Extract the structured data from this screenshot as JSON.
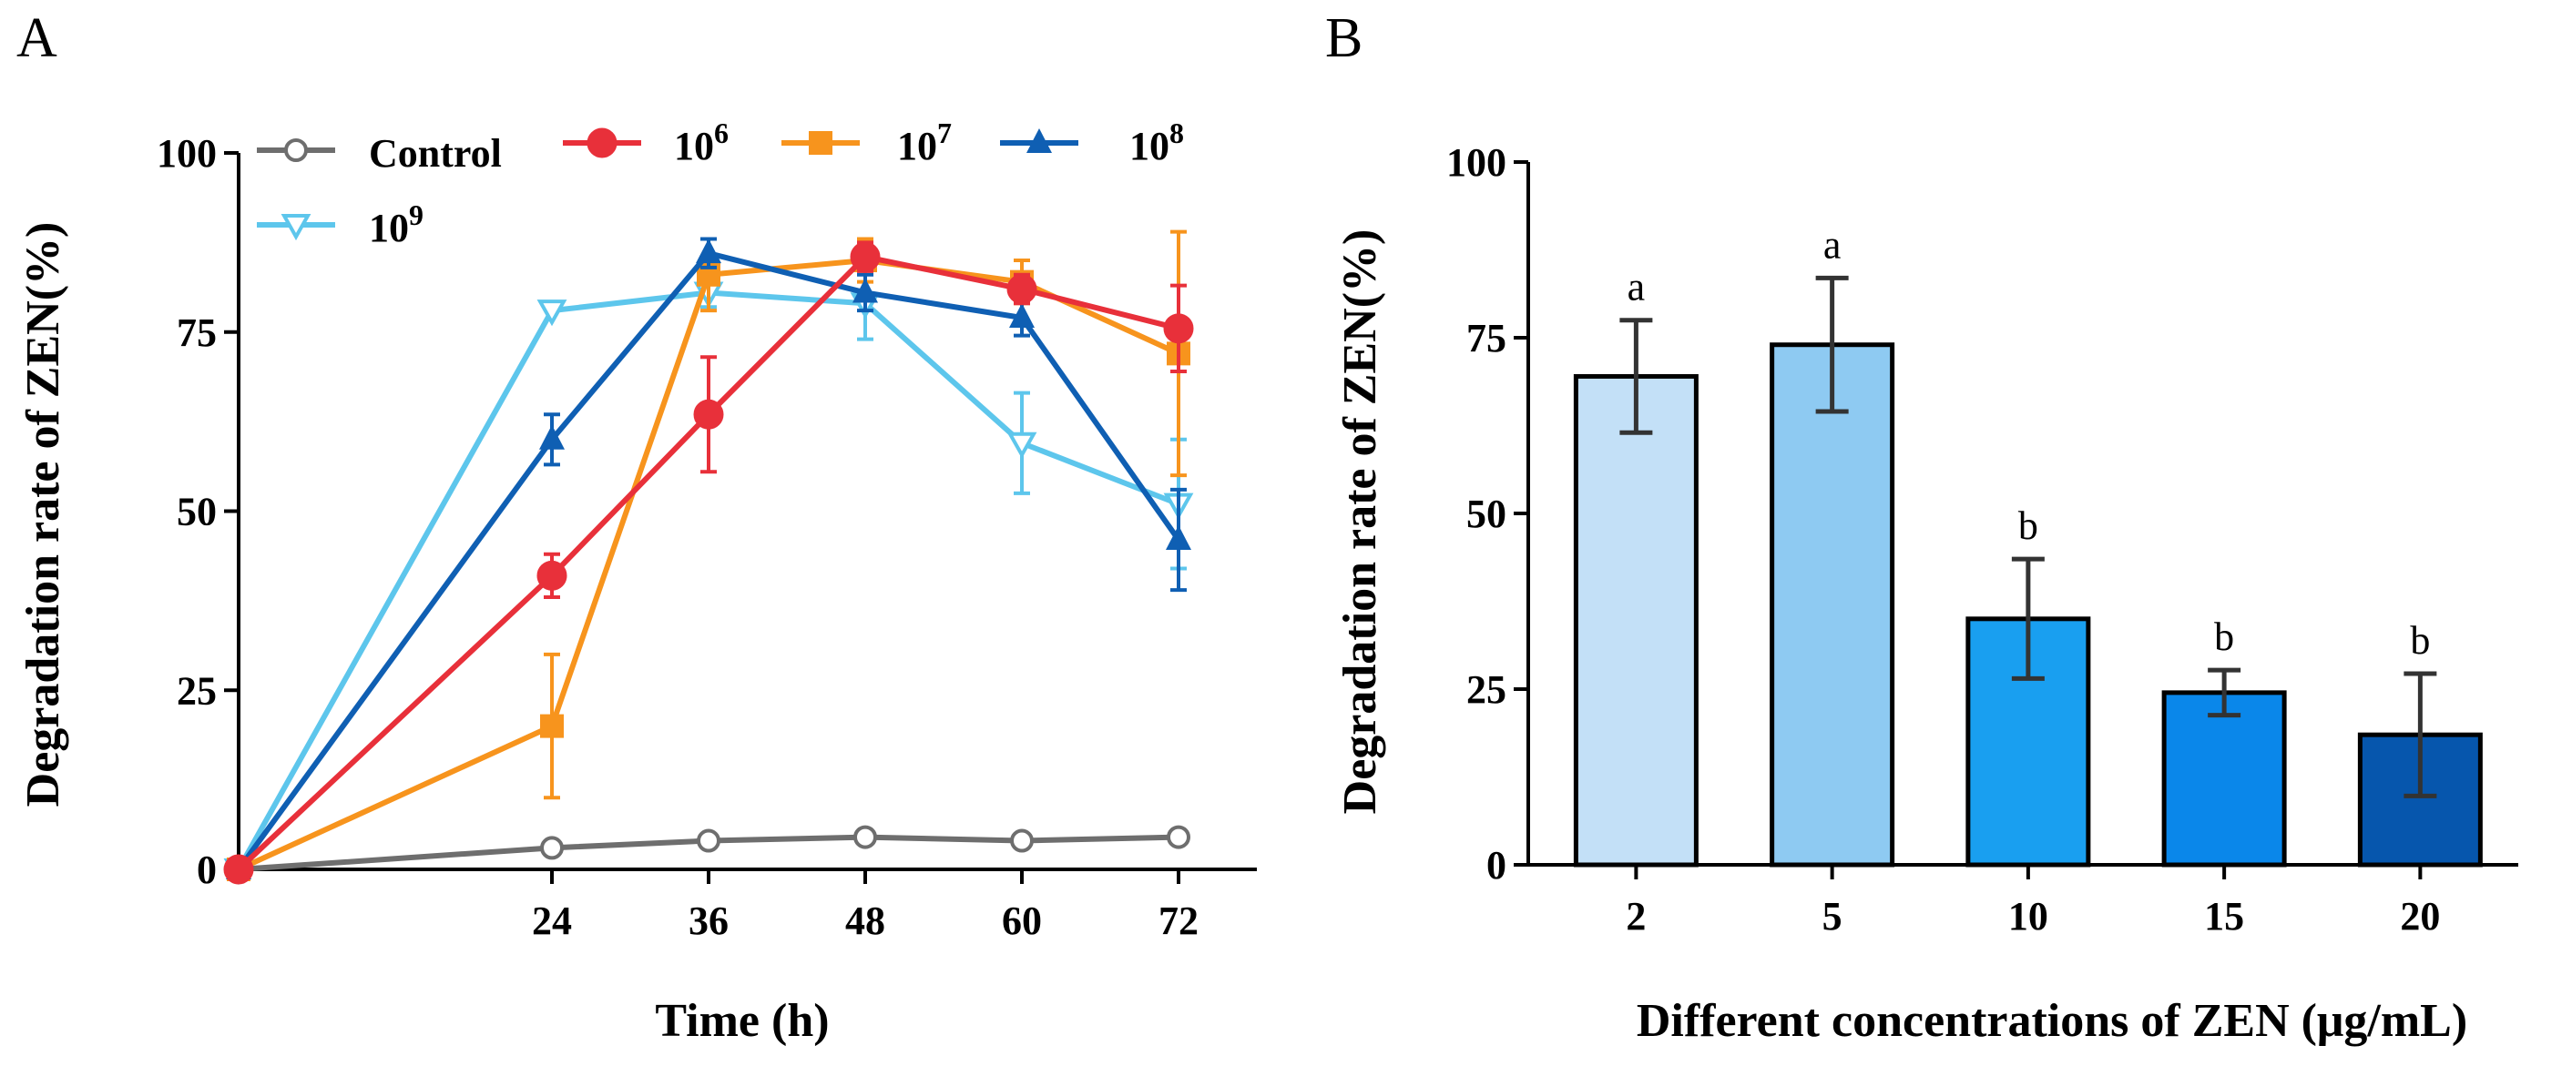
{
  "chart_data": [
    {
      "type": "line",
      "panel_label": "A",
      "xlabel": "Time (h)",
      "ylabel": "Degradation rate of ZEN(%)",
      "xlim": [
        0,
        78
      ],
      "ylim": [
        0,
        100
      ],
      "xticks": [
        24,
        36,
        48,
        60,
        72
      ],
      "yticks": [
        0,
        25,
        50,
        75,
        100
      ],
      "x": [
        0,
        24,
        36,
        48,
        60,
        72
      ],
      "legend_position": "top",
      "series": [
        {
          "name": "Control",
          "base": "Control",
          "sup": "",
          "marker": "circle-open",
          "color": "#6e6e6e",
          "values": [
            0,
            3,
            4,
            4.5,
            4,
            4.5
          ],
          "errors": [
            0,
            0.5,
            0.5,
            0.5,
            0.5,
            0.5
          ]
        },
        {
          "name": "10^6",
          "base": "10",
          "sup": "6",
          "marker": "circle",
          "color": "#e8303a",
          "values": [
            0,
            41,
            63.5,
            85.5,
            81,
            75.5
          ],
          "errors": [
            0,
            3,
            8,
            2,
            2,
            6
          ]
        },
        {
          "name": "10^7",
          "base": "10",
          "sup": "7",
          "marker": "square",
          "color": "#f7941d",
          "values": [
            0,
            20,
            83,
            85,
            82,
            72
          ],
          "errors": [
            0,
            10,
            5,
            3,
            3,
            17
          ]
        },
        {
          "name": "10^8",
          "base": "10",
          "sup": "8",
          "marker": "triangle",
          "color": "#0f5fb3",
          "values": [
            0,
            60,
            86,
            80.5,
            77,
            46
          ],
          "errors": [
            0,
            3.5,
            2,
            2.5,
            2.5,
            7
          ]
        },
        {
          "name": "10^9",
          "base": "10",
          "sup": "9",
          "marker": "triangle-down-open",
          "color": "#5dc6ec",
          "values": [
            0,
            78,
            80.5,
            79,
            59.5,
            51
          ],
          "errors": [
            0,
            0.5,
            2,
            5,
            7,
            9
          ]
        }
      ]
    },
    {
      "type": "bar",
      "panel_label": "B",
      "xlabel": "Different concentrations of ZEN (μg/mL)",
      "ylabel": "Degradation rate of ZEN(%)",
      "ylim": [
        0,
        100
      ],
      "yticks": [
        0,
        25,
        50,
        75,
        100
      ],
      "categories": [
        "2",
        "5",
        "10",
        "15",
        "20"
      ],
      "values": [
        69.5,
        74,
        35,
        24.5,
        18.5
      ],
      "errors": [
        8,
        9.5,
        8.5,
        3.2,
        8.7
      ],
      "labels": [
        "a",
        "a",
        "b",
        "b",
        "b"
      ],
      "colors": [
        "#c3e0f7",
        "#8ecaf2",
        "#199ff0",
        "#0a87ea",
        "#0656ad"
      ]
    }
  ]
}
